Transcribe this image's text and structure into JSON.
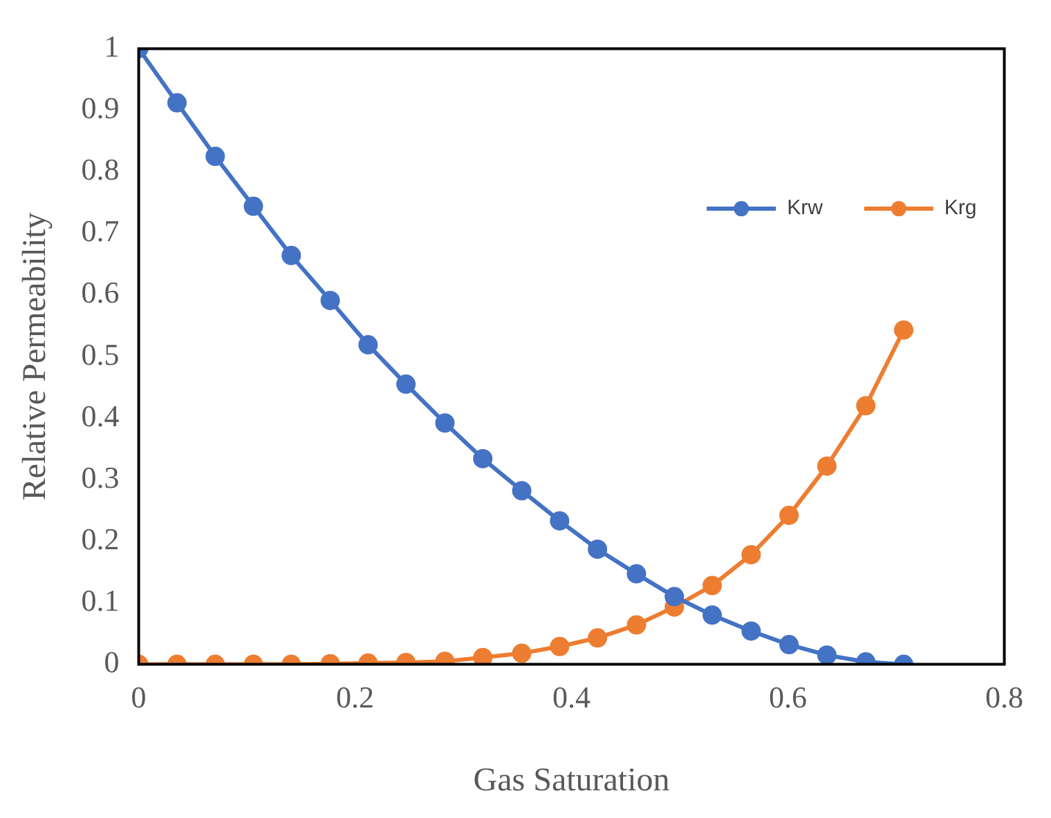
{
  "chart_data": {
    "type": "line",
    "xlabel": "Gas Saturation",
    "ylabel": "Relative Permeability",
    "x": [
      0,
      0.0354,
      0.0707,
      0.106,
      0.141,
      0.177,
      0.212,
      0.247,
      0.283,
      0.318,
      0.354,
      0.389,
      0.424,
      0.46,
      0.495,
      0.53,
      0.566,
      0.601,
      0.636,
      0.672,
      0.707
    ],
    "series": [
      {
        "name": "Krw",
        "color": "#4472c4",
        "values": [
          1,
          0.912,
          0.825,
          0.744,
          0.664,
          0.591,
          0.519,
          0.455,
          0.392,
          0.334,
          0.282,
          0.233,
          0.187,
          0.147,
          0.11,
          0.08,
          0.054,
          0.032,
          0.015,
          0.004,
          0
        ]
      },
      {
        "name": "Krg",
        "color": "#ed7d31",
        "values": [
          0,
          0,
          0,
          0,
          0,
          0.001,
          0.002,
          0.003,
          0.005,
          0.011,
          0.018,
          0.029,
          0.043,
          0.064,
          0.093,
          0.128,
          0.178,
          0.242,
          0.322,
          0.42,
          0.543
        ]
      }
    ],
    "xlim": [
      0,
      0.8
    ],
    "xticks": [
      0,
      0.2,
      0.4,
      0.6,
      0.8
    ],
    "ylim": [
      0,
      1
    ],
    "yticks": [
      0,
      0.1,
      0.2,
      0.3,
      0.4,
      0.5,
      0.6,
      0.7,
      0.8,
      0.9,
      1
    ],
    "grid": false,
    "legend": "top right",
    "marker": "circle",
    "line_style": "solid"
  }
}
